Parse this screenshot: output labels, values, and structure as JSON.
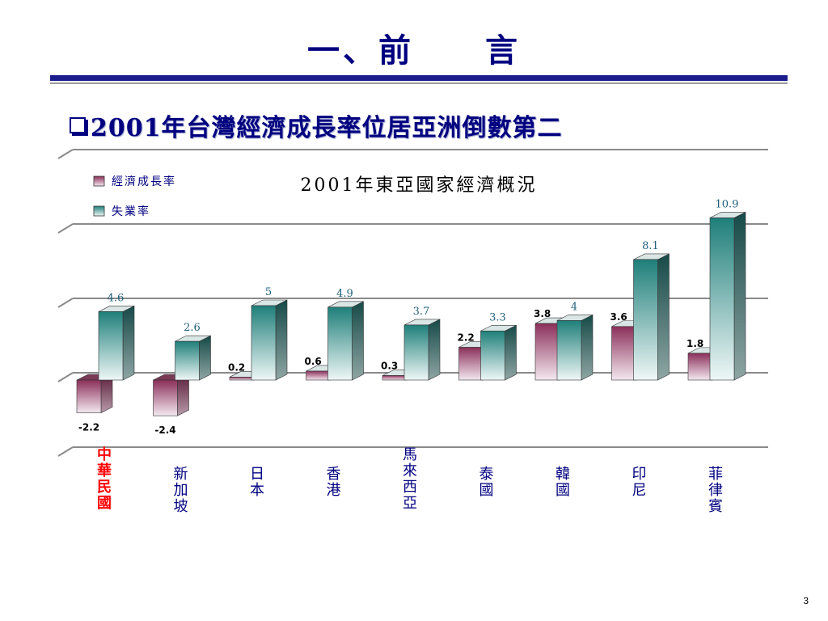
{
  "slide": {
    "title": "一、前　　言",
    "bullet": "2001年台灣經濟成長率位居亞洲倒數第二",
    "page_number": "3"
  },
  "colors": {
    "title": "#000080",
    "growth_bar": "#8b2f5a",
    "unemployment_bar": "#1f7f7a",
    "highlight_category": "#ff0000",
    "category_text": "#000080"
  },
  "chart_data": {
    "type": "bar",
    "title": "2001年東亞國家經濟概況",
    "xlabel": "",
    "ylabel": "",
    "ylim": [
      -5,
      15
    ],
    "grid": true,
    "legend_position": "top-left",
    "categories": [
      "中華民國",
      "新加坡",
      "日本",
      "香港",
      "馬來西亞",
      "泰國",
      "韓國",
      "印尼",
      "菲律賓"
    ],
    "highlight_category": "中華民國",
    "series": [
      {
        "name": "經濟成長率",
        "values": [
          -2.2,
          -2.4,
          0.2,
          0.6,
          0.3,
          2.2,
          3.8,
          3.6,
          1.8
        ],
        "labels": [
          "-2.2",
          "-2.4",
          "0.2",
          "0.6",
          "0.3",
          "2.2",
          "3.8",
          "3.6",
          "1.8"
        ]
      },
      {
        "name": "失業率",
        "values": [
          4.6,
          2.6,
          5,
          4.9,
          3.7,
          3.3,
          4,
          8.1,
          10.9
        ],
        "labels": [
          "4.6",
          "2.6",
          "5",
          "4.9",
          "3.7",
          "3.3",
          "4",
          "8.1",
          "10.9"
        ]
      }
    ]
  }
}
